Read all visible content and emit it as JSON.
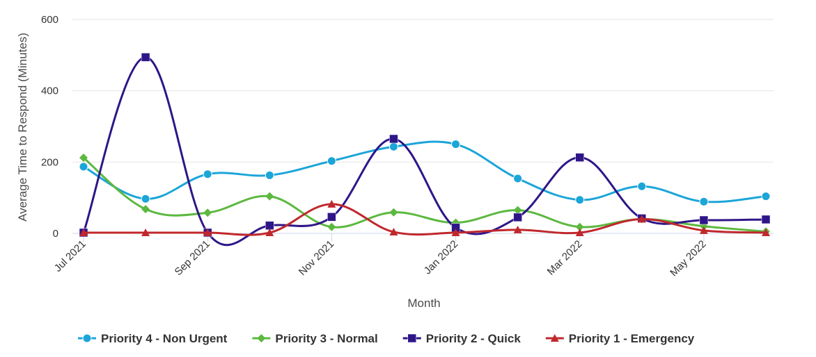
{
  "chart_data": {
    "type": "line",
    "xlabel": "Month",
    "ylabel": "Average Time to Respond (Minutes)",
    "ylim": [
      0,
      600
    ],
    "yticks": [
      "0",
      "200",
      "400",
      "600"
    ],
    "grid": true,
    "legend_position": "bottom",
    "categories": [
      "Jul 2021",
      "Aug 2021",
      "Sep 2021",
      "Oct 2021",
      "Nov 2021",
      "Dec 2021",
      "Jan 2022",
      "Feb 2022",
      "Mar 2022",
      "Apr 2022",
      "May 2022",
      "Jun 2022"
    ],
    "x_tick_labels": [
      "Jul 2021",
      "",
      "Sep 2021",
      "",
      "Nov 2021",
      "",
      "Jan 2022",
      "",
      "Mar 2022",
      "",
      "May 2022",
      ""
    ],
    "series": [
      {
        "name": "Priority 4 - Non Urgent",
        "color": "#1ba5d8",
        "marker": "circle",
        "values": [
          187,
          97,
          166,
          163,
          203,
          243,
          250,
          154,
          94,
          132,
          89,
          104
        ]
      },
      {
        "name": "Priority 3 - Normal",
        "color": "#5cb83f",
        "marker": "diamond",
        "values": [
          212,
          68,
          58,
          104,
          18,
          59,
          30,
          65,
          18,
          40,
          20,
          5
        ]
      },
      {
        "name": "Priority 2 - Quick",
        "color": "#2e1688",
        "marker": "square",
        "values": [
          2,
          494,
          2,
          22,
          46,
          265,
          16,
          45,
          213,
          42,
          37,
          39
        ]
      },
      {
        "name": "Priority 1 - Emergency",
        "color": "#c0282d",
        "marker": "triangle",
        "values": [
          2,
          2,
          2,
          2,
          82,
          4,
          2,
          10,
          2,
          40,
          8,
          2
        ]
      }
    ]
  }
}
